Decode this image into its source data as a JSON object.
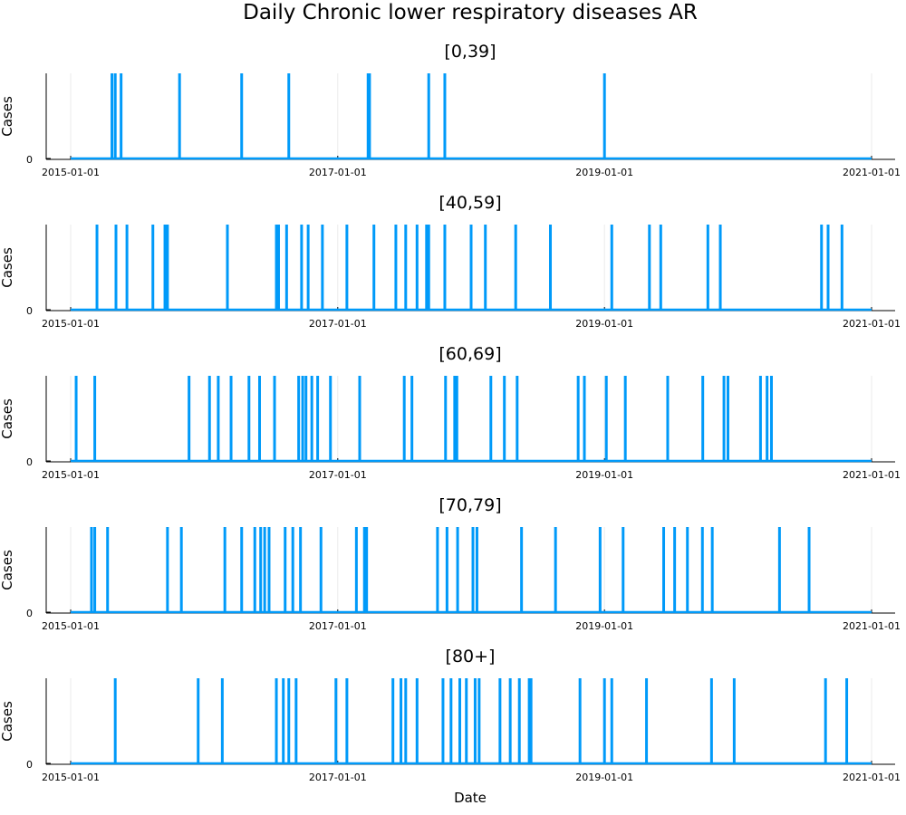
{
  "chart_data": {
    "type": "line",
    "title": "Daily Chronic lower respiratory diseases AR",
    "xlabel": "Date",
    "x_ticks": [
      "2015-01-01",
      "2017-01-01",
      "2019-01-01",
      "2021-01-01"
    ],
    "x_range": [
      "2015-01-01",
      "2021-01-01"
    ],
    "series_color": "#009af9",
    "grid": true,
    "legend": "none",
    "panels": [
      {
        "title": "[0,39]",
        "ylabel": "Cases",
        "y_ticks": [
          "0"
        ],
        "ylim": [
          0,
          1
        ],
        "spike_value": 1,
        "spike_dates": [
          "2015-04-24",
          "2015-05-03",
          "2015-05-19",
          "2015-10-26",
          "2016-04-13",
          "2016-08-20",
          "2017-03-25",
          "2017-03-29",
          "2017-09-07",
          "2017-10-21",
          "2019-01-01"
        ]
      },
      {
        "title": "[40,59]",
        "ylabel": "Cases",
        "y_ticks": [
          "0"
        ],
        "ylim": [
          0,
          1
        ],
        "spike_value": 1,
        "spike_dates": [
          "2015-03-14",
          "2015-05-05",
          "2015-06-04",
          "2015-08-14",
          "2015-09-16",
          "2015-09-23",
          "2016-03-05",
          "2016-07-17",
          "2016-07-23",
          "2016-08-14",
          "2016-09-24",
          "2016-10-12",
          "2016-11-20",
          "2017-01-26",
          "2017-04-10",
          "2017-06-09",
          "2017-07-06",
          "2017-08-06",
          "2017-09-01",
          "2017-09-07",
          "2017-10-21",
          "2018-01-01",
          "2018-02-09",
          "2018-05-03",
          "2018-08-06",
          "2019-01-21",
          "2019-05-04",
          "2019-06-04",
          "2019-10-11",
          "2019-11-14",
          "2020-08-17",
          "2020-09-04",
          "2020-10-12"
        ]
      },
      {
        "title": "[60,69]",
        "ylabel": "Cases",
        "y_ticks": [
          "0"
        ],
        "ylim": [
          0,
          1
        ],
        "spike_value": 1,
        "spike_dates": [
          "2015-01-16",
          "2015-03-08",
          "2015-11-21",
          "2016-01-16",
          "2016-02-09",
          "2016-03-15",
          "2016-05-03",
          "2016-06-01",
          "2016-07-12",
          "2016-09-16",
          "2016-09-27",
          "2016-10-06",
          "2016-10-22",
          "2016-11-07",
          "2016-12-12",
          "2017-03-02",
          "2017-07-02",
          "2017-07-23",
          "2017-10-23",
          "2017-11-17",
          "2017-11-23",
          "2018-02-24",
          "2018-04-02",
          "2018-05-07",
          "2018-10-21",
          "2018-11-07",
          "2019-01-06",
          "2019-02-27",
          "2019-06-23",
          "2019-09-27",
          "2019-11-24",
          "2019-12-05",
          "2020-03-03",
          "2020-03-21",
          "2020-04-02"
        ]
      },
      {
        "title": "[70,79]",
        "ylabel": "Cases",
        "y_ticks": [
          "0"
        ],
        "ylim": [
          0,
          1
        ],
        "spike_value": 1,
        "spike_dates": [
          "2015-02-27",
          "2015-03-08",
          "2015-04-12",
          "2015-09-23",
          "2015-10-31",
          "2016-02-27",
          "2016-04-13",
          "2016-05-19",
          "2016-06-04",
          "2016-06-15",
          "2016-06-27",
          "2016-08-10",
          "2016-08-31",
          "2016-09-21",
          "2016-11-16",
          "2017-02-21",
          "2017-03-15",
          "2017-03-21",
          "2017-10-01",
          "2017-10-27",
          "2017-11-25",
          "2018-01-06",
          "2018-01-17",
          "2018-05-19",
          "2018-08-20",
          "2018-12-20",
          "2019-02-21",
          "2019-06-12",
          "2019-07-12",
          "2019-08-16",
          "2019-09-26",
          "2019-10-23",
          "2020-04-24",
          "2020-07-14"
        ]
      },
      {
        "title": "[80+]",
        "ylabel": "Cases",
        "y_ticks": [
          "0"
        ],
        "ylim": [
          0,
          1
        ],
        "spike_value": 1,
        "spike_dates": [
          "2015-05-03",
          "2015-12-16",
          "2016-02-20",
          "2016-07-17",
          "2016-08-05",
          "2016-08-20",
          "2016-09-09",
          "2016-12-27",
          "2017-01-26",
          "2017-06-01",
          "2017-06-23",
          "2017-07-06",
          "2017-08-06",
          "2017-10-16",
          "2017-11-07",
          "2017-12-01",
          "2017-12-19",
          "2018-01-12",
          "2018-01-23",
          "2018-03-21",
          "2018-04-18",
          "2018-05-13",
          "2018-06-09",
          "2018-06-14",
          "2018-10-26",
          "2019-01-01",
          "2019-01-21",
          "2019-04-26",
          "2019-10-21",
          "2019-12-22",
          "2020-08-28",
          "2020-10-25"
        ]
      }
    ]
  }
}
